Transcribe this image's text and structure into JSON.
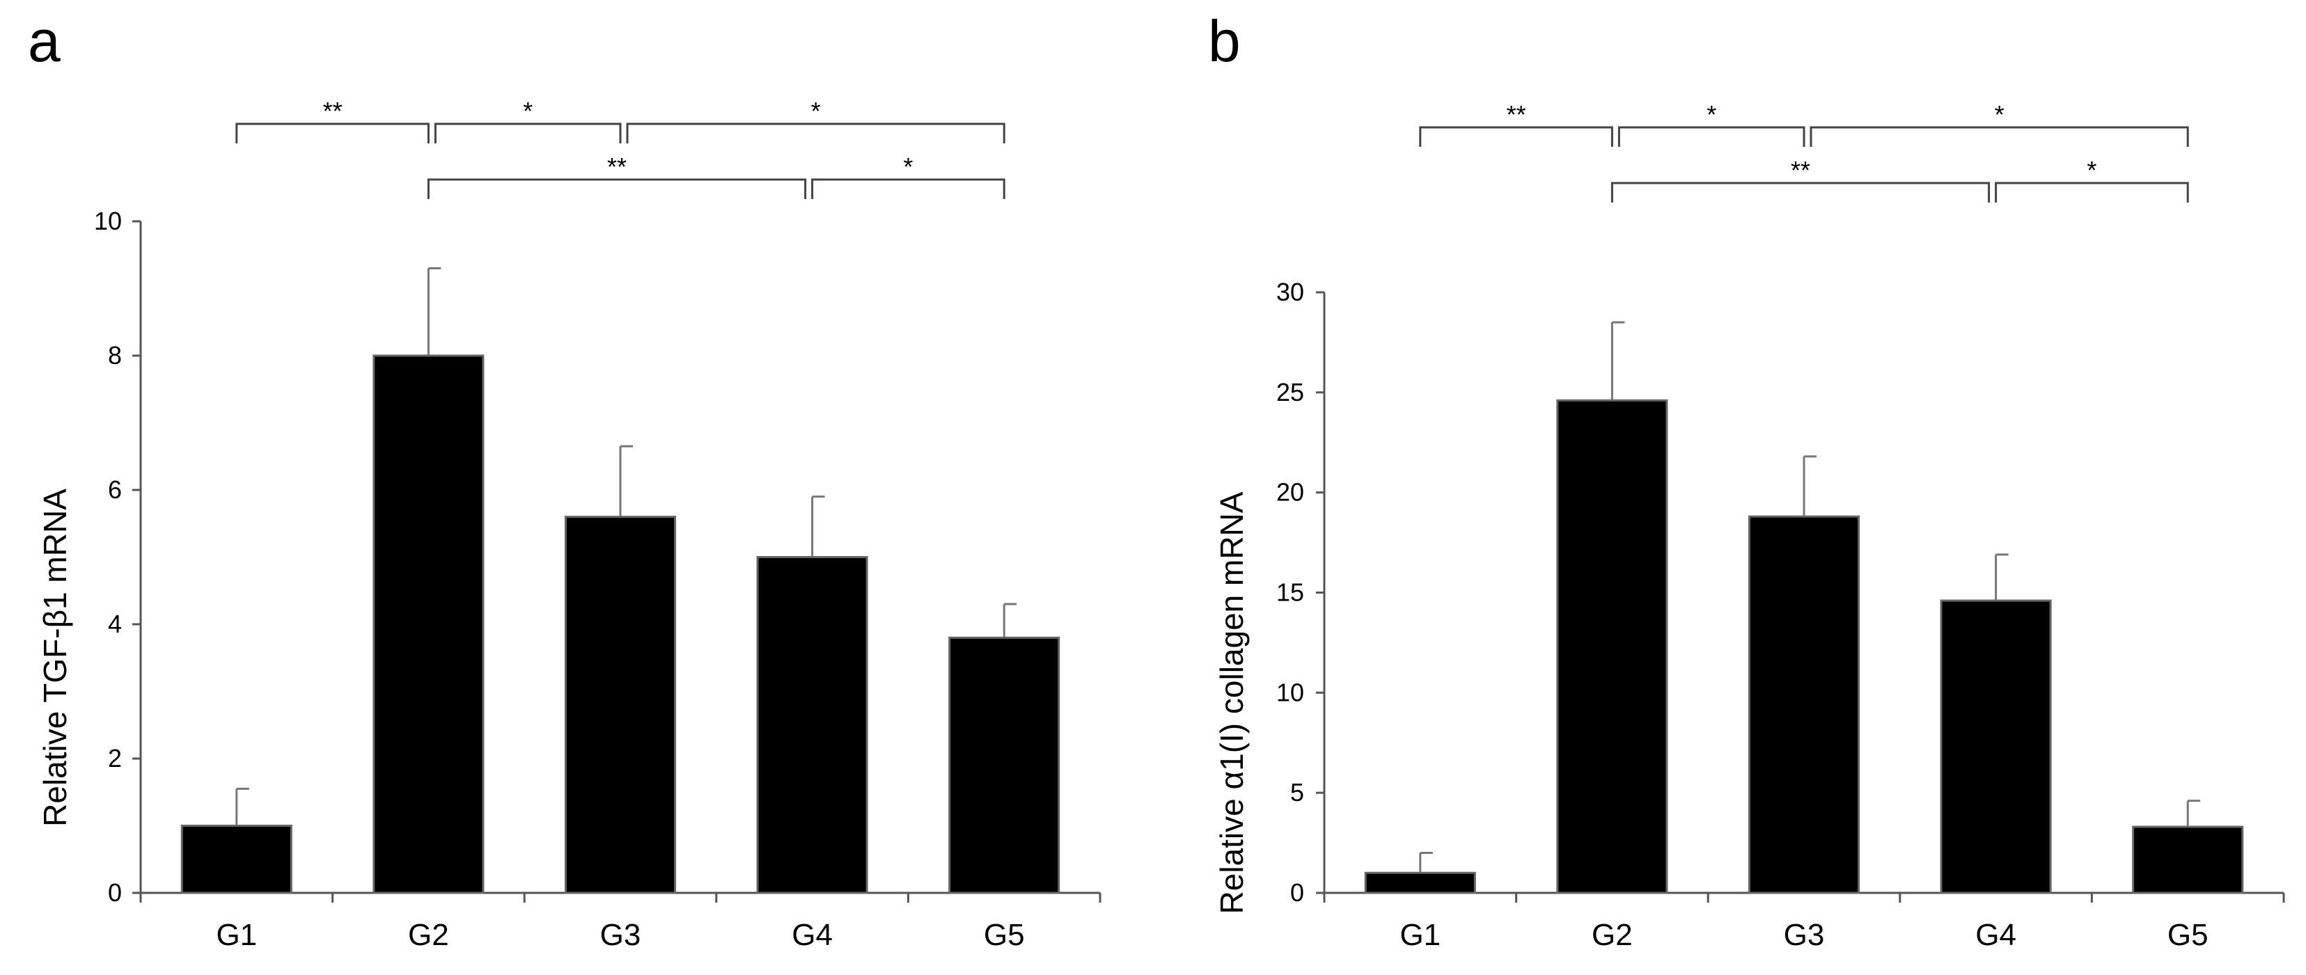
{
  "chart_data": [
    {
      "type": "bar",
      "panel_label": "a",
      "title": "",
      "xlabel": "",
      "ylabel": "Relative TGF-β1 mRNA",
      "ylim": [
        0,
        10
      ],
      "yticks": [
        0,
        2,
        4,
        6,
        8,
        10
      ],
      "categories": [
        "G1",
        "G2",
        "G3",
        "G4",
        "G5"
      ],
      "values": [
        1.0,
        8.0,
        5.6,
        5.0,
        3.8
      ],
      "errors": [
        0.55,
        1.3,
        1.05,
        0.9,
        0.5
      ],
      "bar_color": "#000000",
      "significance": [
        {
          "from": 0,
          "to": 1,
          "label": "**",
          "level": 0
        },
        {
          "from": 1,
          "to": 2,
          "label": "*",
          "level": 0
        },
        {
          "from": 2,
          "to": 4,
          "label": "*",
          "level": 0
        },
        {
          "from": 1,
          "to": 3,
          "label": "**",
          "level": 1
        },
        {
          "from": 3,
          "to": 4,
          "label": "*",
          "level": 1
        }
      ]
    },
    {
      "type": "bar",
      "panel_label": "b",
      "title": "",
      "xlabel": "",
      "ylabel": "Relative α1(I) collagen mRNA",
      "ylim": [
        0,
        30
      ],
      "yticks": [
        0,
        5,
        10,
        15,
        20,
        25,
        30
      ],
      "categories": [
        "G1",
        "G2",
        "G3",
        "G4",
        "G5"
      ],
      "values": [
        1.0,
        24.6,
        18.8,
        14.6,
        3.3
      ],
      "errors": [
        1.0,
        3.9,
        3.0,
        2.3,
        1.3
      ],
      "bar_color": "#000000",
      "significance": [
        {
          "from": 0,
          "to": 1,
          "label": "**",
          "level": 0
        },
        {
          "from": 1,
          "to": 2,
          "label": "*",
          "level": 0
        },
        {
          "from": 2,
          "to": 4,
          "label": "*",
          "level": 0
        },
        {
          "from": 1,
          "to": 3,
          "label": "**",
          "level": 1
        },
        {
          "from": 3,
          "to": 4,
          "label": "*",
          "level": 1
        }
      ]
    }
  ]
}
